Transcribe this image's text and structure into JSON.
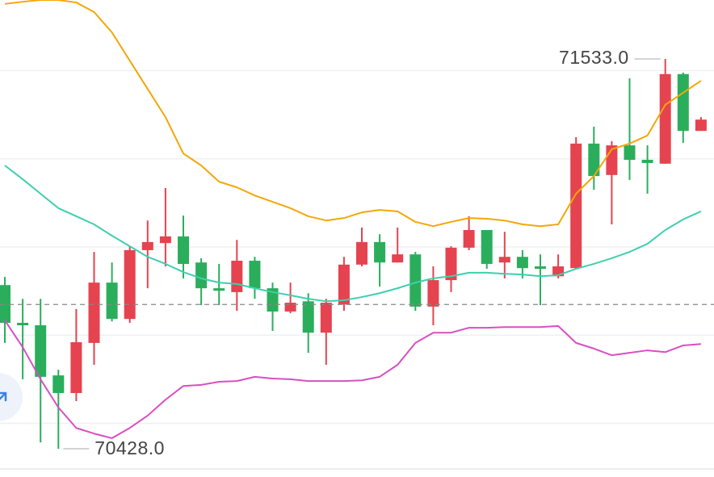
{
  "chart_data": {
    "type": "candlestick",
    "up_color": "#e5434f",
    "down_color": "#2aae5c",
    "ylim": [
      70348,
      71700
    ],
    "gridlines": [
      70500,
      70750,
      71000,
      71250,
      71500
    ],
    "price_line": 70837,
    "open": [
      70892,
      70785,
      70778,
      70636,
      70586,
      70728,
      70899,
      70796,
      70991,
      71011,
      71030,
      70956,
      70883,
      70872,
      70961,
      70883,
      70817,
      70846,
      70757,
      70837,
      70950,
      71014,
      70956,
      70979,
      70831,
      70906,
      70998,
      71048,
      70956,
      70972,
      70945,
      70917,
      70940,
      71293,
      71204,
      71288,
      71247,
      71236,
      71490,
      71329
    ],
    "high": [
      70915,
      70853,
      70853,
      70652,
      70824,
      70986,
      70956,
      71002,
      71075,
      71167,
      71089,
      70968,
      70952,
      71020,
      70972,
      70899,
      70899,
      70869,
      70853,
      70972,
      71055,
      71036,
      71055,
      70986,
      70945,
      71002,
      71087,
      71048,
      71043,
      70991,
      70979,
      70979,
      71311,
      71341,
      71300,
      71478,
      71288,
      71533,
      71494,
      71368
    ],
    "low": [
      70728,
      70625,
      70446,
      70428,
      70563,
      70666,
      70789,
      70785,
      70883,
      70945,
      70911,
      70835,
      70835,
      70819,
      70853,
      70762,
      70812,
      70700,
      70666,
      70819,
      70945,
      70888,
      70956,
      70819,
      70778,
      70872,
      70991,
      70938,
      70911,
      70911,
      70835,
      70911,
      70938,
      71162,
      71064,
      71190,
      71151,
      71236,
      71295,
      71329
    ],
    "close": [
      70785,
      70778,
      70632,
      70586,
      70730,
      70899,
      70796,
      70991,
      71014,
      71030,
      70952,
      70883,
      70876,
      70961,
      70883,
      70817,
      70842,
      70757,
      70842,
      70950,
      71014,
      70956,
      70979,
      70831,
      70906,
      70998,
      71048,
      70952,
      70972,
      70940,
      70938,
      70945,
      71293,
      71201,
      71288,
      71247,
      71238,
      71490,
      71329,
      71361
    ],
    "lines": [
      {
        "color": "#f4a707",
        "values": [
          71689,
          71695,
          71700,
          71700,
          71693,
          71666,
          71608,
          71528,
          71448,
          71368,
          71265,
          71231,
          71185,
          71169,
          71146,
          71128,
          71110,
          71087,
          71075,
          71082,
          71098,
          71105,
          71101,
          71071,
          71059,
          71071,
          71082,
          71080,
          71075,
          71064,
          71059,
          71064,
          71151,
          71201,
          71277,
          71293,
          71316,
          71403,
          71437,
          71471
        ]
      },
      {
        "color": "#3fcfae",
        "values": [
          71231,
          71192,
          71151,
          71110,
          71087,
          71064,
          71032,
          71002,
          70972,
          70952,
          70929,
          70911,
          70899,
          70895,
          70883,
          70872,
          70863,
          70853,
          70846,
          70849,
          70858,
          70869,
          70883,
          70899,
          70911,
          70917,
          70927,
          70927,
          70924,
          70922,
          70917,
          70920,
          70938,
          70952,
          70968,
          70986,
          71009,
          71048,
          71078,
          71101
        ]
      },
      {
        "color": "#d84fc2",
        "values": [
          70792,
          70716,
          70625,
          70545,
          70487,
          70471,
          70458,
          70487,
          70522,
          70567,
          70606,
          70609,
          70618,
          70620,
          70632,
          70627,
          70625,
          70620,
          70620,
          70620,
          70622,
          70632,
          70666,
          70728,
          70757,
          70757,
          70771,
          70771,
          70773,
          70773,
          70773,
          70776,
          70728,
          70712,
          70693,
          70700,
          70707,
          70702,
          70721,
          70725
        ]
      }
    ],
    "annotations": [
      {
        "value": 71533,
        "label": "71533.0"
      },
      {
        "value": 70428,
        "label": "70428.0"
      }
    ]
  }
}
